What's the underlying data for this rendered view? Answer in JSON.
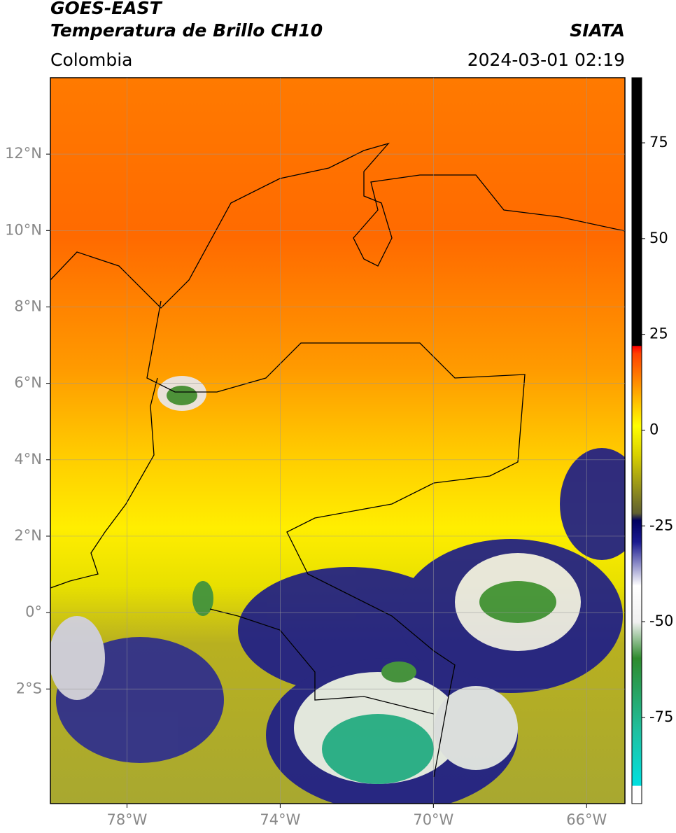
{
  "header": {
    "satellite": "GOES-EAST",
    "product": "Temperatura de Brillo CH10",
    "source": "SIATA",
    "region": "Colombia",
    "timestamp": "2024-03-01 02:19"
  },
  "map": {
    "xlim": [
      -80,
      -65
    ],
    "ylim": [
      -5,
      14
    ],
    "xticks": [
      {
        "value": -78,
        "label": "78°W"
      },
      {
        "value": -74,
        "label": "74°W"
      },
      {
        "value": -70,
        "label": "70°W"
      },
      {
        "value": -66,
        "label": "66°W"
      }
    ],
    "yticks": [
      {
        "value": 12,
        "label": "12°N"
      },
      {
        "value": 10,
        "label": "10°N"
      },
      {
        "value": 8,
        "label": "8°N"
      },
      {
        "value": 6,
        "label": "6°N"
      },
      {
        "value": 4,
        "label": "4°N"
      },
      {
        "value": 2,
        "label": "2°N"
      },
      {
        "value": 0,
        "label": "0°"
      },
      {
        "value": -2,
        "label": "2°S"
      }
    ],
    "grid": true
  },
  "colorbar": {
    "lim": [
      -97.5,
      92
    ],
    "ticks": [
      75,
      50,
      25,
      0,
      -25,
      -50,
      -75
    ]
  }
}
